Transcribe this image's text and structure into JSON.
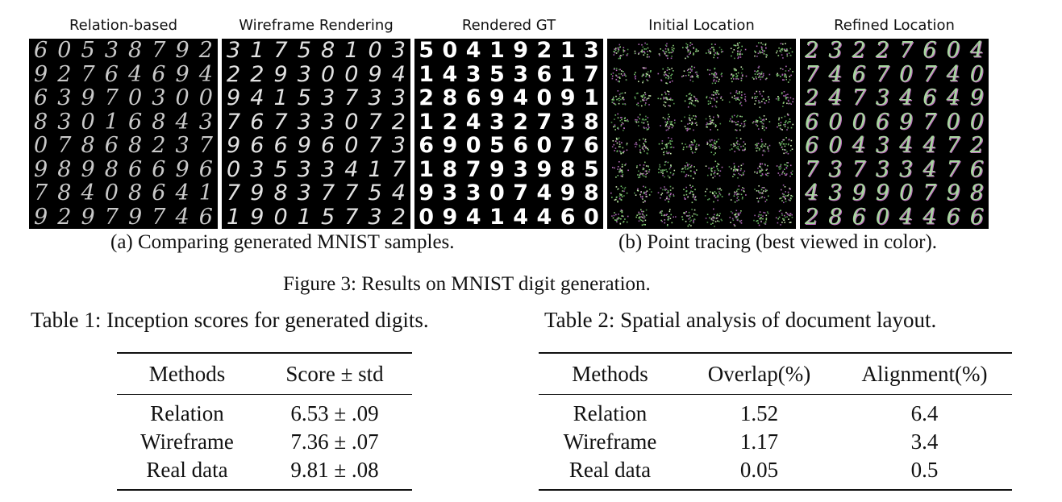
{
  "figure": {
    "panels": [
      {
        "title": "Relation-based",
        "kind": "digits",
        "digits": [
          "60538792",
          "92764694",
          "63970300",
          "83016843",
          "07868237",
          "98986696",
          "78408641",
          "92979746"
        ]
      },
      {
        "title": "Wireframe Rendering",
        "kind": "digits",
        "digits": [
          "31758103",
          "22930094",
          "94153733",
          "76733072",
          "96696073",
          "03533417",
          "79837754",
          "19015732"
        ]
      },
      {
        "title": "Rendered GT",
        "kind": "digits",
        "digits": [
          "50419213",
          "14353617",
          "28694091",
          "12432738",
          "69056076",
          "18793985",
          "93307498",
          "09414460"
        ]
      },
      {
        "title": "Initial Location",
        "kind": "scatter",
        "digits": []
      },
      {
        "title": "Refined Location",
        "kind": "digits",
        "digits": [
          "23227604",
          "74670740",
          "24734649",
          "60069700",
          "60434472",
          "73733476",
          "43990798",
          "28604466"
        ]
      }
    ],
    "caption_a": "(a) Comparing generated MNIST samples.",
    "caption_b": "(b) Point tracing (best viewed in color).",
    "caption": "Figure 3: Results on MNIST digit generation."
  },
  "table1": {
    "caption": "Table 1: Inception scores for generated digits.",
    "headers": [
      "Methods",
      "Score ± std"
    ],
    "rows": [
      [
        "Relation",
        "6.53 ± .09"
      ],
      [
        "Wireframe",
        "7.36 ± .07"
      ],
      [
        "Real data",
        "9.81 ± .08"
      ]
    ]
  },
  "table2": {
    "caption": "Table 2: Spatial analysis of document layout.",
    "headers": [
      "Methods",
      "Overlap(%)",
      "Alignment(%)"
    ],
    "rows": [
      [
        "Relation",
        "1.52",
        "6.4"
      ],
      [
        "Wireframe",
        "1.17",
        "3.4"
      ],
      [
        "Real data",
        "0.05",
        "0.5"
      ]
    ]
  }
}
